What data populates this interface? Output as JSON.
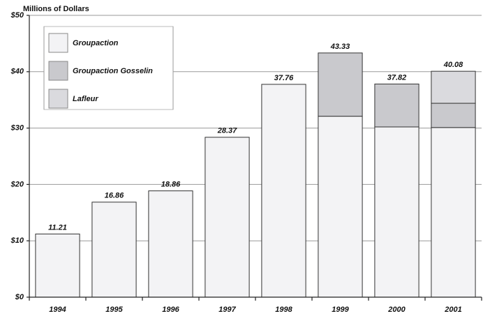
{
  "chart_data": {
    "type": "stacked-bar",
    "title": "Millions of Dollars",
    "categories": [
      "1994",
      "1995",
      "1996",
      "1997",
      "1998",
      "1999",
      "2000",
      "2001"
    ],
    "series": [
      {
        "name": "Groupaction",
        "color": "#f3f3f5",
        "values": [
          11.21,
          16.86,
          18.86,
          28.37,
          37.76,
          32.1,
          30.2,
          30.1
        ]
      },
      {
        "name": "Groupaction Gosselin",
        "color": "#c9c9cd",
        "values": [
          null,
          null,
          null,
          null,
          null,
          11.23,
          7.62,
          4.3
        ]
      },
      {
        "name": "Lafleur",
        "color": "#dadade",
        "values": [
          null,
          null,
          null,
          null,
          null,
          null,
          null,
          5.68
        ]
      }
    ],
    "totals": [
      11.21,
      16.86,
      18.86,
      28.37,
      37.76,
      43.33,
      37.82,
      40.08
    ],
    "ylim": [
      0,
      50
    ],
    "yticks": [
      {
        "value": 0,
        "label": "$0"
      },
      {
        "value": 10,
        "label": "$10"
      },
      {
        "value": 20,
        "label": "$20"
      },
      {
        "value": 30,
        "label": "$30"
      },
      {
        "value": 40,
        "label": "$40"
      },
      {
        "value": 50,
        "label": "$50"
      }
    ],
    "grid": true,
    "legend": "top-left"
  }
}
